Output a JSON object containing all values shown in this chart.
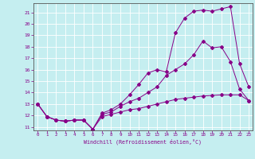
{
  "xlabel": "Windchill (Refroidissement éolien,°C)",
  "background_color": "#c5eef0",
  "grid_color": "#ffffff",
  "line_color": "#880088",
  "axis_color": "#666666",
  "xlim": [
    -0.5,
    23.4
  ],
  "ylim": [
    10.7,
    21.8
  ],
  "xticks": [
    0,
    1,
    2,
    3,
    4,
    5,
    6,
    7,
    8,
    9,
    10,
    11,
    12,
    13,
    14,
    15,
    16,
    17,
    18,
    19,
    20,
    21,
    22,
    23
  ],
  "yticks": [
    11,
    12,
    13,
    14,
    15,
    16,
    17,
    18,
    19,
    20,
    21
  ],
  "line1_x": [
    0,
    1,
    2,
    3,
    4,
    5,
    6,
    7,
    8,
    9,
    10,
    11,
    12,
    13,
    14,
    15,
    16,
    17,
    18,
    19,
    20,
    21,
    22,
    23
  ],
  "line1_y": [
    13.0,
    11.9,
    11.6,
    11.5,
    11.6,
    11.6,
    10.8,
    12.2,
    12.5,
    13.0,
    13.8,
    14.7,
    15.7,
    16.0,
    15.8,
    19.2,
    20.5,
    21.1,
    21.2,
    21.1,
    21.3,
    21.5,
    16.5,
    14.5
  ],
  "line2_x": [
    0,
    1,
    2,
    3,
    4,
    5,
    6,
    7,
    8,
    9,
    10,
    11,
    12,
    13,
    14,
    15,
    16,
    17,
    18,
    19,
    20,
    21,
    22,
    23
  ],
  "line2_y": [
    13.0,
    11.9,
    11.6,
    11.5,
    11.6,
    11.6,
    10.8,
    12.1,
    12.3,
    12.8,
    13.2,
    13.5,
    14.0,
    14.5,
    15.5,
    16.0,
    16.5,
    17.3,
    18.5,
    17.9,
    18.0,
    16.7,
    14.3,
    13.3
  ],
  "line3_x": [
    0,
    1,
    2,
    3,
    4,
    5,
    6,
    7,
    8,
    9,
    10,
    11,
    12,
    13,
    14,
    15,
    16,
    17,
    18,
    19,
    20,
    21,
    22,
    23
  ],
  "line3_y": [
    13.0,
    11.9,
    11.6,
    11.5,
    11.6,
    11.6,
    10.8,
    11.9,
    12.1,
    12.3,
    12.5,
    12.6,
    12.8,
    13.0,
    13.2,
    13.4,
    13.5,
    13.6,
    13.7,
    13.75,
    13.8,
    13.8,
    13.8,
    13.3
  ]
}
